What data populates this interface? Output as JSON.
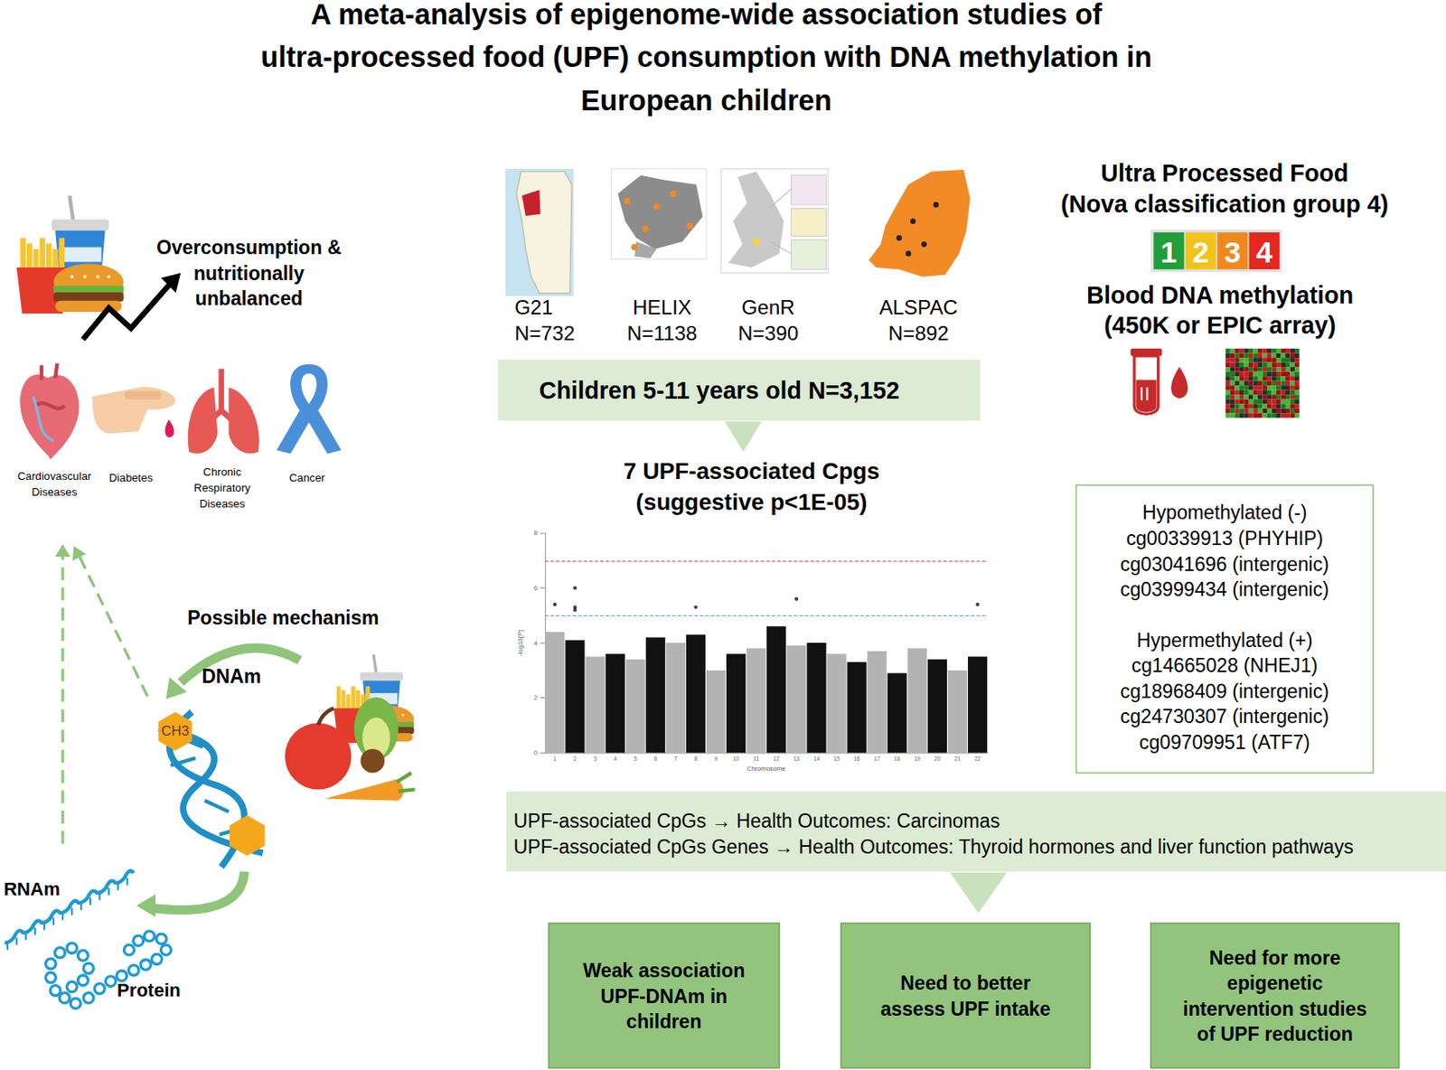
{
  "title": [
    "A meta-analysis of epigenome-wide association studies of",
    "ultra-processed food (UPF) consumption with DNA methylation in",
    "European children"
  ],
  "risk": {
    "lines": [
      "Overconsumption  &",
      "nutritionally",
      "unbalanced"
    ],
    "diseases": [
      [
        "Cardiovascular",
        "Diseases"
      ],
      [
        "Diabetes"
      ],
      [
        "Chronic",
        "Respiratory",
        "Diseases"
      ],
      [
        "Cancer"
      ]
    ]
  },
  "mechanism": {
    "title": "Possible mechanism",
    "dnam": "DNAm",
    "ch3": "CH3",
    "rnam": "RNAm",
    "protein": "Protein"
  },
  "cohorts": [
    {
      "name": "G21",
      "n": "N=732"
    },
    {
      "name": "HELIX",
      "n": "N=1138"
    },
    {
      "name": "GenR",
      "n": "N=390"
    },
    {
      "name": "ALSPAC",
      "n": "N=892"
    }
  ],
  "sample": "Children 5-11 years old  N=3,152",
  "exposure": {
    "title": [
      "Ultra Processed Food",
      "(Nova classification group 4)"
    ],
    "nova": [
      {
        "label": "1",
        "color": "#1f9e3a"
      },
      {
        "label": "2",
        "color": "#f2c31b"
      },
      {
        "label": "3",
        "color": "#ee8a1d"
      },
      {
        "label": "4",
        "color": "#e3281f"
      }
    ]
  },
  "methylation": [
    "Blood DNA methylation",
    "(450K or EPIC array)"
  ],
  "results_title": [
    "7 UPF-associated Cpgs",
    "(suggestive p<1E-05)"
  ],
  "chart_data": {
    "type": "scatter",
    "x_label": "Chromosome",
    "y_label": "-log10(P)",
    "categories": [
      "1",
      "2",
      "3",
      "4",
      "5",
      "6",
      "7",
      "8",
      "9",
      "10",
      "11",
      "12",
      "13",
      "14",
      "15",
      "16",
      "17",
      "18",
      "19",
      "20",
      "21",
      "22"
    ],
    "chromosome_peaks": {
      "values": [
        4.4,
        4.1,
        3.5,
        3.6,
        3.4,
        4.2,
        4.0,
        4.3,
        3.0,
        3.6,
        3.8,
        4.6,
        3.9,
        4.0,
        3.6,
        3.3,
        3.7,
        2.9,
        3.8,
        3.4,
        3.0,
        3.5
      ],
      "colors": [
        "#b3b3b3",
        "#111111",
        "#b3b3b3",
        "#111111",
        "#b3b3b3",
        "#111111",
        "#b3b3b3",
        "#111111",
        "#b3b3b3",
        "#111111",
        "#b3b3b3",
        "#111111",
        "#b3b3b3",
        "#111111",
        "#b3b3b3",
        "#111111",
        "#b3b3b3",
        "#111111",
        "#b3b3b3",
        "#111111",
        "#b3b3b3",
        "#111111"
      ]
    },
    "hits": {
      "chromosome": [
        1,
        2,
        2,
        2,
        8,
        13,
        22
      ],
      "values": [
        5.4,
        6.0,
        5.3,
        5.2,
        5.3,
        5.6,
        5.4
      ],
      "color": "#111111"
    },
    "thresholds": [
      {
        "value": 7,
        "color": "#e06666"
      },
      {
        "value": 5,
        "color": "#5aa9b0"
      }
    ],
    "ylim": [
      0,
      8
    ],
    "yticks": [
      0,
      2,
      4,
      6,
      8
    ],
    "grid": false
  },
  "cpgs": {
    "hypo": {
      "title": "Hypomethylated (-)",
      "items": [
        "cg00339913 (PHYHIP)",
        "cg03041696 (intergenic)",
        "cg03999434 (intergenic)"
      ]
    },
    "hyper": {
      "title": "Hypermethylated (+)",
      "items": [
        "cg14665028 (NHEJ1)",
        "cg18968409 (intergenic)",
        "cg24730307 (intergenic)",
        "cg09709951 (ATF7)"
      ]
    }
  },
  "outcomes": [
    "UPF-associated CpGs → Health Outcomes: Carcinomas",
    "UPF-associated CpGs Genes → Health Outcomes: Thyroid hormones and liver function pathways"
  ],
  "conclusions": [
    [
      "Weak association",
      "UPF-DNAm in",
      "children"
    ],
    [
      "Need to better",
      "assess UPF intake"
    ],
    [
      "Need for more",
      "epigenetic",
      "intervention studies",
      "of UPF reduction"
    ]
  ]
}
